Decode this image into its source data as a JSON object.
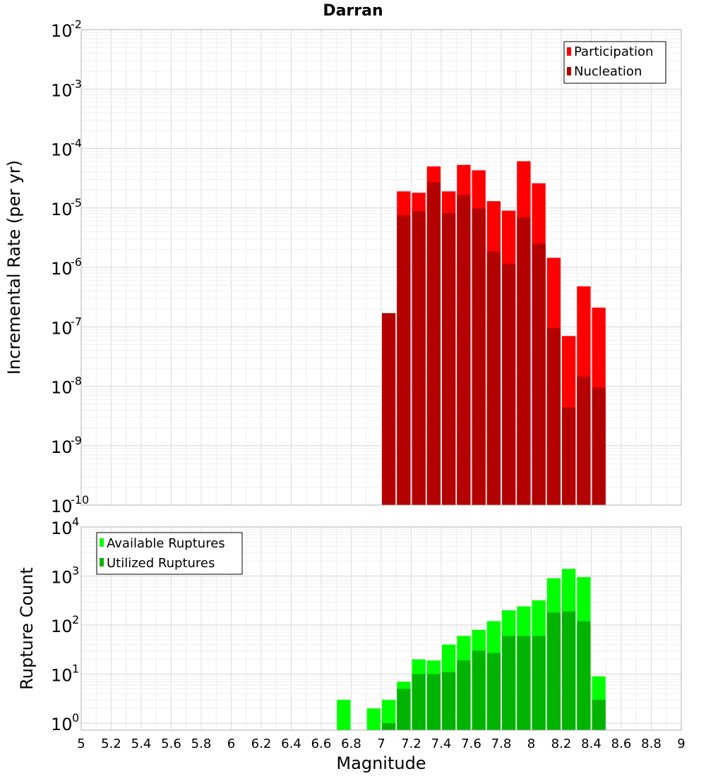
{
  "chart_data": [
    {
      "type": "bar",
      "title": "Darran",
      "ylabel": "Incremental Rate (per yr)",
      "xlabel": "",
      "scale": "log",
      "ylim_exp": [
        -10,
        -2
      ],
      "xlim": [
        5,
        9
      ],
      "bin_width": 0.1,
      "y_ticks": [
        {
          "base": "10",
          "exp": "-10"
        },
        {
          "base": "10",
          "exp": "-9"
        },
        {
          "base": "10",
          "exp": "-8"
        },
        {
          "base": "10",
          "exp": "-7"
        },
        {
          "base": "10",
          "exp": "-6"
        },
        {
          "base": "10",
          "exp": "-5"
        },
        {
          "base": "10",
          "exp": "-4"
        },
        {
          "base": "10",
          "exp": "-3"
        },
        {
          "base": "10",
          "exp": "-2"
        }
      ],
      "legend": [
        "Participation",
        "Nucleation"
      ],
      "legend_position": "top-right",
      "series": [
        {
          "name": "Participation",
          "color": "#ff0000",
          "x": [
            7.15,
            7.25,
            7.35,
            7.45,
            7.55,
            7.65,
            7.75,
            7.85,
            7.95,
            8.05,
            8.15,
            8.25,
            8.35,
            8.45
          ],
          "values": [
            1.9e-05,
            1.8e-05,
            5e-05,
            1.9e-05,
            5.3e-05,
            4.3e-05,
            1.3e-05,
            9e-06,
            6.1e-05,
            2.6e-05,
            1.45e-06,
            7e-08,
            4.8e-07,
            2.1e-07
          ]
        },
        {
          "name": "Nucleation",
          "color": "#b30000",
          "x": [
            7.05,
            7.15,
            7.25,
            7.35,
            7.45,
            7.55,
            7.65,
            7.75,
            7.85,
            7.95,
            8.05,
            8.15,
            8.25,
            8.35,
            8.45
          ],
          "values": [
            1.7e-07,
            7.5e-06,
            8.8e-06,
            2.7e-05,
            8.2e-06,
            1.65e-05,
            9.8e-06,
            1.85e-06,
            1.15e-06,
            6.9e-06,
            2.5e-06,
            9.5e-08,
            4.4e-09,
            1.45e-08,
            9.5e-09
          ]
        }
      ]
    },
    {
      "type": "bar",
      "title": "",
      "ylabel": "Rupture Count",
      "xlabel": "Magnitude",
      "scale": "log",
      "ylim": [
        0.72,
        10000
      ],
      "y_tick_exps": [
        0,
        1,
        2,
        3,
        4
      ],
      "y_ticks": [
        {
          "base": "10",
          "exp": "0"
        },
        {
          "base": "10",
          "exp": "1"
        },
        {
          "base": "10",
          "exp": "2"
        },
        {
          "base": "10",
          "exp": "3"
        },
        {
          "base": "10",
          "exp": "4"
        }
      ],
      "xlim": [
        5,
        9
      ],
      "bin_width": 0.1,
      "x_ticks": [
        "5",
        "5.2",
        "5.4",
        "5.6",
        "5.8",
        "6",
        "6.2",
        "6.4",
        "6.6",
        "6.8",
        "7",
        "7.2",
        "7.4",
        "7.6",
        "7.8",
        "8",
        "8.2",
        "8.4",
        "8.6",
        "8.8",
        "9"
      ],
      "legend": [
        "Available Ruptures",
        "Utilized Ruptures"
      ],
      "legend_position": "top-left",
      "series": [
        {
          "name": "Available Ruptures",
          "color": "#00ff00",
          "x": [
            6.75,
            6.95,
            7.05,
            7.15,
            7.25,
            7.35,
            7.45,
            7.55,
            7.65,
            7.75,
            7.85,
            7.95,
            8.05,
            8.15,
            8.25,
            8.35,
            8.45
          ],
          "values": [
            3,
            2,
            3,
            7,
            20,
            19,
            40,
            60,
            80,
            120,
            200,
            240,
            320,
            900,
            1400,
            950,
            9
          ]
        },
        {
          "name": "Utilized Ruptures",
          "color": "#00b300",
          "x": [
            7.05,
            7.15,
            7.25,
            7.35,
            7.45,
            7.55,
            7.65,
            7.75,
            7.85,
            7.95,
            8.05,
            8.15,
            8.25,
            8.35,
            8.45
          ],
          "values": [
            1,
            5,
            10,
            10,
            11,
            19,
            30,
            27,
            60,
            60,
            60,
            180,
            190,
            120,
            3
          ]
        }
      ]
    }
  ]
}
